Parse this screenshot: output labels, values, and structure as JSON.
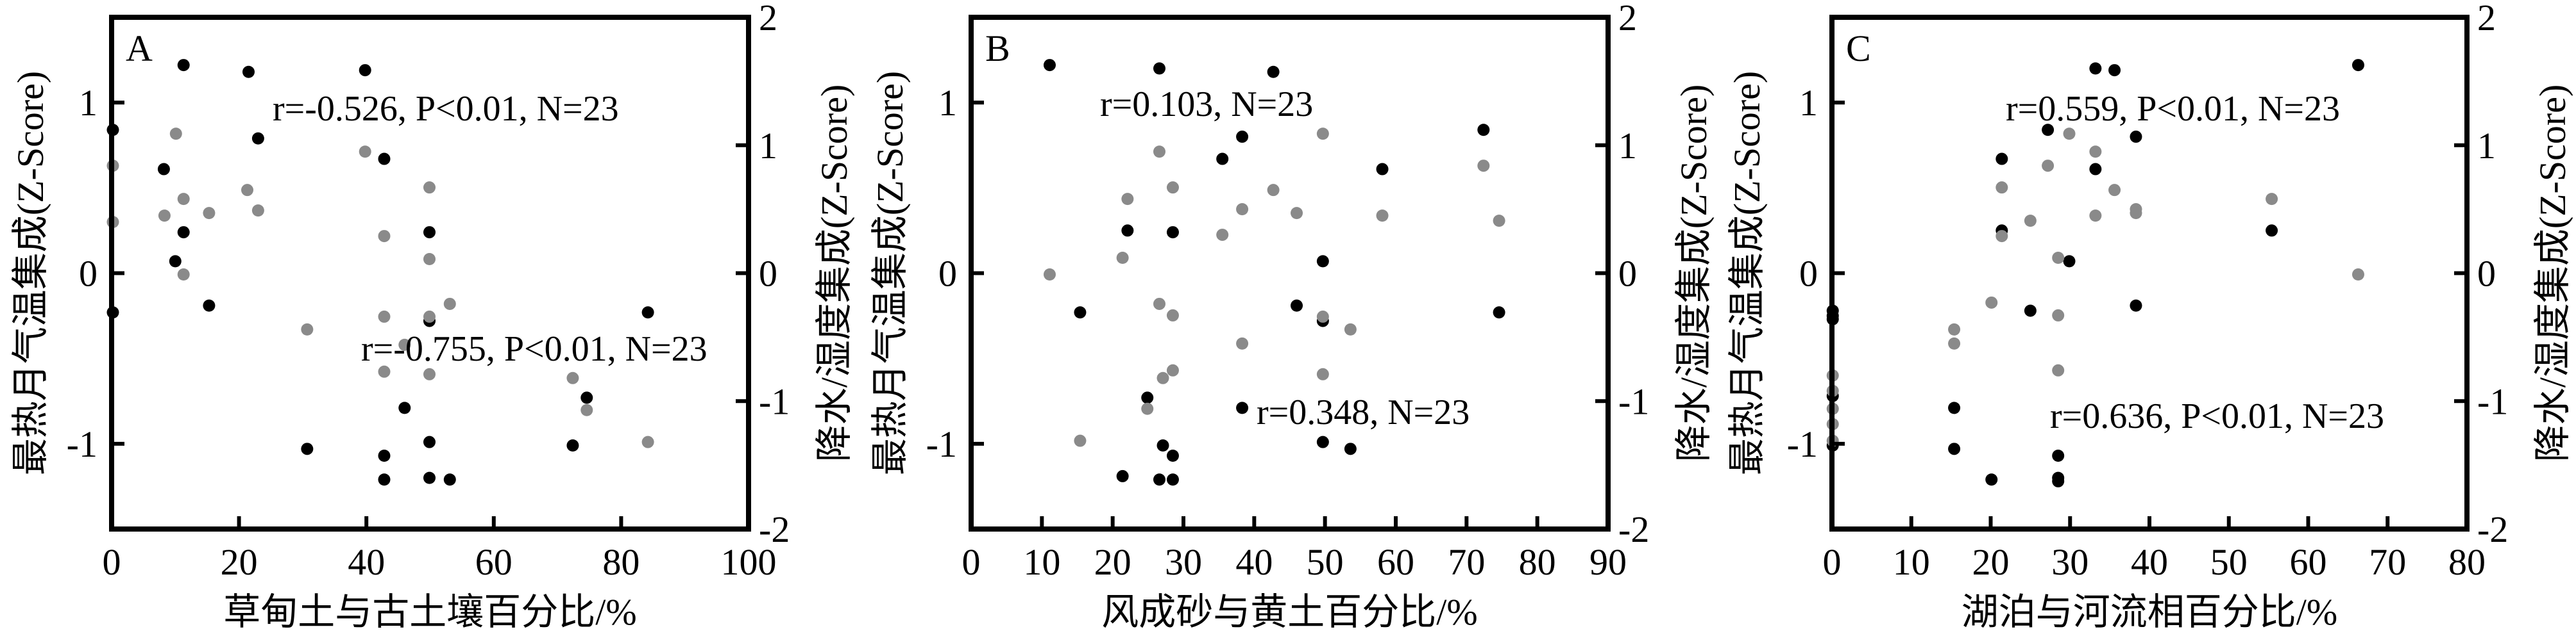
{
  "colors": {
    "temperature": "#000000",
    "precipitation": "#8a8a8a",
    "frame": "#000000"
  },
  "chart_data": [
    {
      "type": "scatter",
      "panel_label": "A",
      "xlabel": "草甸土与古土壤百分比/%",
      "ylabel_left": "最热月气温集成(Z-Score)",
      "ylabel_right": "降水/湿度集成(Z-Score)",
      "xlim": [
        0,
        100
      ],
      "xticks": [
        0,
        20,
        40,
        60,
        80,
        100
      ],
      "ylim_left": [
        -1.5,
        1.5
      ],
      "yticks_left": [
        -1,
        0,
        1
      ],
      "ylim_right": [
        -2,
        2
      ],
      "yticks_right": [
        -2,
        -1,
        0,
        1,
        2
      ],
      "grid": false,
      "annotations": [
        "r=-0.526, P<0.01, N=23",
        "r=-0.755, P<0.01, N=23"
      ],
      "series": [
        {
          "axis": "left",
          "color": "#000000",
          "points": [
            [
              11.3,
              1.22
            ],
            [
              21.5,
              1.18
            ],
            [
              39.8,
              1.19
            ],
            [
              0.2,
              0.84
            ],
            [
              23.0,
              0.79
            ],
            [
              8.2,
              0.61
            ],
            [
              42.8,
              0.67
            ],
            [
              11.3,
              0.24
            ],
            [
              49.9,
              0.24
            ],
            [
              10.0,
              0.07
            ],
            [
              15.3,
              -0.19
            ],
            [
              0.2,
              -0.23
            ],
            [
              84.2,
              -0.23
            ],
            [
              49.9,
              -0.28
            ],
            [
              74.6,
              -0.73
            ],
            [
              46.0,
              -0.79
            ],
            [
              49.9,
              -0.99
            ],
            [
              72.4,
              -1.01
            ],
            [
              30.7,
              -1.03
            ],
            [
              42.8,
              -1.07
            ],
            [
              42.8,
              -1.21
            ],
            [
              49.9,
              -1.2
            ],
            [
              53.1,
              -1.21
            ]
          ]
        },
        {
          "axis": "right",
          "color": "#8a8a8a",
          "points": [
            [
              10.1,
              1.09
            ],
            [
              0.2,
              0.84
            ],
            [
              39.8,
              0.95
            ],
            [
              49.9,
              0.67
            ],
            [
              21.3,
              0.65
            ],
            [
              11.3,
              0.58
            ],
            [
              8.3,
              0.45
            ],
            [
              15.3,
              0.47
            ],
            [
              23.0,
              0.49
            ],
            [
              0.2,
              0.4
            ],
            [
              42.8,
              0.29
            ],
            [
              49.9,
              0.11
            ],
            [
              11.3,
              -0.01
            ],
            [
              53.1,
              -0.24
            ],
            [
              42.8,
              -0.34
            ],
            [
              49.9,
              -0.34
            ],
            [
              30.7,
              -0.44
            ],
            [
              46.0,
              -0.56
            ],
            [
              42.8,
              -0.77
            ],
            [
              49.9,
              -0.79
            ],
            [
              72.4,
              -0.82
            ],
            [
              74.6,
              -1.07
            ],
            [
              84.2,
              -1.32
            ]
          ]
        }
      ]
    },
    {
      "type": "scatter",
      "panel_label": "B",
      "xlabel": "风成砂与黄土百分比/%",
      "ylabel_left": "最热月气温集成(Z-Score)",
      "ylabel_right": "降水/湿度集成(Z-Score)",
      "xlim": [
        0,
        90
      ],
      "xticks": [
        0,
        10,
        20,
        30,
        40,
        50,
        60,
        70,
        80,
        90
      ],
      "ylim_left": [
        -1.5,
        1.5
      ],
      "yticks_left": [
        -1,
        0,
        1
      ],
      "ylim_right": [
        -2,
        2
      ],
      "yticks_right": [
        -2,
        -1,
        0,
        1,
        2
      ],
      "grid": false,
      "annotations": [
        "r=0.103,  N=23",
        "r=0.348, N=23"
      ],
      "series": [
        {
          "axis": "left",
          "color": "#000000",
          "points": [
            [
              11.1,
              1.22
            ],
            [
              26.6,
              1.2
            ],
            [
              42.7,
              1.18
            ],
            [
              72.4,
              0.84
            ],
            [
              38.3,
              0.8
            ],
            [
              35.5,
              0.67
            ],
            [
              58.1,
              0.61
            ],
            [
              22.1,
              0.25
            ],
            [
              28.5,
              0.24
            ],
            [
              49.7,
              0.07
            ],
            [
              46.0,
              -0.19
            ],
            [
              15.4,
              -0.23
            ],
            [
              74.6,
              -0.23
            ],
            [
              49.7,
              -0.28
            ],
            [
              24.9,
              -0.73
            ],
            [
              38.3,
              -0.79
            ],
            [
              49.7,
              -0.99
            ],
            [
              53.6,
              -1.03
            ],
            [
              27.1,
              -1.01
            ],
            [
              28.5,
              -1.07
            ],
            [
              21.4,
              -1.19
            ],
            [
              26.6,
              -1.21
            ],
            [
              28.5,
              -1.21
            ]
          ]
        },
        {
          "axis": "right",
          "color": "#8a8a8a",
          "points": [
            [
              49.7,
              1.09
            ],
            [
              26.6,
              0.95
            ],
            [
              72.4,
              0.84
            ],
            [
              28.5,
              0.67
            ],
            [
              42.7,
              0.65
            ],
            [
              22.1,
              0.58
            ],
            [
              38.3,
              0.5
            ],
            [
              46.0,
              0.47
            ],
            [
              58.1,
              0.45
            ],
            [
              74.6,
              0.41
            ],
            [
              35.5,
              0.3
            ],
            [
              21.4,
              0.12
            ],
            [
              11.1,
              -0.01
            ],
            [
              26.6,
              -0.24
            ],
            [
              28.5,
              -0.33
            ],
            [
              49.7,
              -0.34
            ],
            [
              53.6,
              -0.44
            ],
            [
              38.3,
              -0.55
            ],
            [
              28.5,
              -0.76
            ],
            [
              27.1,
              -0.82
            ],
            [
              49.7,
              -0.79
            ],
            [
              24.9,
              -1.06
            ],
            [
              15.4,
              -1.31
            ]
          ]
        }
      ]
    },
    {
      "type": "scatter",
      "panel_label": "C",
      "xlabel": "湖泊与河流相百分比/%",
      "ylabel_left": "最热月气温集成(Z-Score)",
      "ylabel_right": "降水/湿度集成(Z-Score)",
      "xlim": [
        0,
        80
      ],
      "xticks": [
        0,
        10,
        20,
        30,
        40,
        50,
        60,
        70,
        80
      ],
      "ylim_left": [
        -1.5,
        1.5
      ],
      "yticks_left": [
        -1,
        0,
        1
      ],
      "ylim_right": [
        -2,
        2
      ],
      "yticks_right": [
        -2,
        -1,
        0,
        1,
        2
      ],
      "grid": false,
      "annotations": [
        "r=0.559, P<0.01, N=23",
        "r=0.636, P<0.01, N=23"
      ],
      "series": [
        {
          "axis": "left",
          "color": "#000000",
          "points": [
            [
              33.2,
              1.2
            ],
            [
              35.6,
              1.19
            ],
            [
              66.3,
              1.22
            ],
            [
              27.2,
              0.84
            ],
            [
              38.3,
              0.8
            ],
            [
              21.4,
              0.67
            ],
            [
              33.2,
              0.61
            ],
            [
              21.4,
              0.25
            ],
            [
              55.4,
              0.25
            ],
            [
              29.9,
              0.07
            ],
            [
              25.0,
              -0.22
            ],
            [
              38.3,
              -0.19
            ],
            [
              0.1,
              -0.22
            ],
            [
              0.1,
              -0.25
            ],
            [
              0.1,
              -0.27
            ],
            [
              0.1,
              -0.72
            ],
            [
              15.4,
              -0.79
            ],
            [
              15.4,
              -1.03
            ],
            [
              28.5,
              -1.07
            ],
            [
              20.1,
              -1.21
            ],
            [
              28.5,
              -1.2
            ],
            [
              28.5,
              -1.22
            ],
            [
              0.1,
              -1.01
            ]
          ]
        },
        {
          "axis": "right",
          "color": "#8a8a8a",
          "points": [
            [
              29.9,
              1.09
            ],
            [
              33.2,
              0.95
            ],
            [
              27.2,
              0.84
            ],
            [
              21.4,
              0.67
            ],
            [
              35.6,
              0.65
            ],
            [
              55.4,
              0.58
            ],
            [
              38.3,
              0.5
            ],
            [
              38.3,
              0.47
            ],
            [
              25.0,
              0.41
            ],
            [
              33.2,
              0.45
            ],
            [
              21.4,
              0.29
            ],
            [
              28.5,
              0.12
            ],
            [
              66.3,
              -0.01
            ],
            [
              20.1,
              -0.23
            ],
            [
              28.5,
              -0.33
            ],
            [
              15.4,
              -0.44
            ],
            [
              15.4,
              -0.55
            ],
            [
              28.5,
              -0.76
            ],
            [
              0.1,
              -0.8
            ],
            [
              0.1,
              -0.92
            ],
            [
              0.1,
              -1.06
            ],
            [
              0.1,
              -1.18
            ],
            [
              0.1,
              -1.31
            ]
          ]
        }
      ]
    }
  ]
}
